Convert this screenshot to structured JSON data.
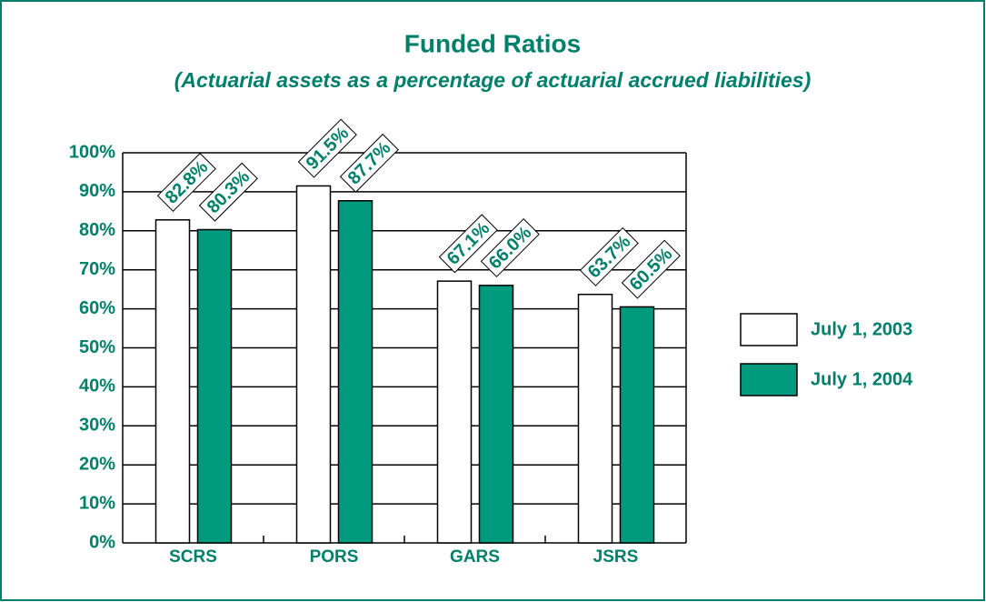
{
  "chart_data": {
    "type": "bar",
    "title": "Funded Ratios",
    "subtitle": "(Actuarial assets as a percentage of actuarial accrued liabilities)",
    "categories": [
      "SCRS",
      "PORS",
      "GARS",
      "JSRS"
    ],
    "series": [
      {
        "name": "July 1, 2003",
        "color": "#ffffff",
        "values": [
          82.8,
          91.5,
          67.1,
          63.7
        ],
        "value_labels": [
          "82.8%",
          "91.5%",
          "67.1%",
          "63.7%"
        ]
      },
      {
        "name": "July 1, 2004",
        "color": "#009a7e",
        "values": [
          80.3,
          87.7,
          66.0,
          60.5
        ],
        "value_labels": [
          "80.3%",
          "87.7%",
          "66.0%",
          "60.5%"
        ]
      }
    ],
    "ylim": [
      0,
      100
    ],
    "yticks": [
      {
        "value": 0,
        "label": "0%"
      },
      {
        "value": 10,
        "label": "10%"
      },
      {
        "value": 20,
        "label": "20%"
      },
      {
        "value": 30,
        "label": "30%"
      },
      {
        "value": 40,
        "label": "40%"
      },
      {
        "value": 50,
        "label": "50%"
      },
      {
        "value": 60,
        "label": "60%"
      },
      {
        "value": 70,
        "label": "70%"
      },
      {
        "value": 80,
        "label": "80%"
      },
      {
        "value": 90,
        "label": "90%"
      },
      {
        "value": 100,
        "label": "100%"
      }
    ],
    "grid": true,
    "legend": "right"
  }
}
